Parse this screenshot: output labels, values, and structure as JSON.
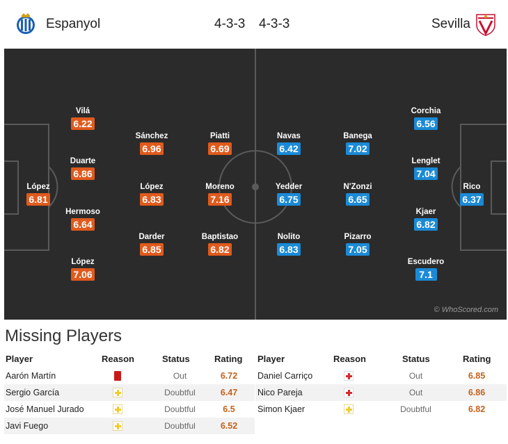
{
  "header": {
    "home_team": "Espanyol",
    "away_team": "Sevilla",
    "home_formation": "4-3-3",
    "away_formation": "4-3-3"
  },
  "pitch": {
    "watermark": "© WhoScored.com",
    "home_players": [
      {
        "name": "López",
        "rating": "6.81"
      },
      {
        "name": "Vilá",
        "rating": "6.22"
      },
      {
        "name": "Duarte",
        "rating": "6.86"
      },
      {
        "name": "Hermoso",
        "rating": "6.64"
      },
      {
        "name": "López",
        "rating": "7.06"
      },
      {
        "name": "Sánchez",
        "rating": "6.96"
      },
      {
        "name": "López",
        "rating": "6.83"
      },
      {
        "name": "Darder",
        "rating": "6.85"
      },
      {
        "name": "Piatti",
        "rating": "6.69"
      },
      {
        "name": "Moreno",
        "rating": "7.16"
      },
      {
        "name": "Baptistao",
        "rating": "6.82"
      }
    ],
    "away_players": [
      {
        "name": "Navas",
        "rating": "6.42"
      },
      {
        "name": "Yedder",
        "rating": "6.75"
      },
      {
        "name": "Nolito",
        "rating": "6.83"
      },
      {
        "name": "Banega",
        "rating": "7.02"
      },
      {
        "name": "N'Zonzi",
        "rating": "6.65"
      },
      {
        "name": "Pizarro",
        "rating": "7.05"
      },
      {
        "name": "Corchia",
        "rating": "6.56"
      },
      {
        "name": "Lenglet",
        "rating": "7.04"
      },
      {
        "name": "Kjaer",
        "rating": "6.82"
      },
      {
        "name": "Escudero",
        "rating": "7.1"
      },
      {
        "name": "Rico",
        "rating": "6.37"
      }
    ]
  },
  "missing": {
    "title": "Missing Players",
    "columns": {
      "player": "Player",
      "reason": "Reason",
      "status": "Status",
      "rating": "Rating"
    },
    "home": [
      {
        "player": "Aarón Martín",
        "reason_icon": "red-card-icon",
        "status": "Out",
        "rating": "6.72"
      },
      {
        "player": "Sergio García",
        "reason_icon": "doubtful-icon",
        "status": "Doubtful",
        "rating": "6.47"
      },
      {
        "player": "José Manuel Jurado",
        "reason_icon": "doubtful-icon",
        "status": "Doubtful",
        "rating": "6.5"
      },
      {
        "player": "Javi Fuego",
        "reason_icon": "doubtful-icon",
        "status": "Doubtful",
        "rating": "6.52"
      }
    ],
    "away": [
      {
        "player": "Daniel Carriço",
        "reason_icon": "injury-icon",
        "status": "Out",
        "rating": "6.85"
      },
      {
        "player": "Nico Pareja",
        "reason_icon": "injury-icon",
        "status": "Out",
        "rating": "6.86"
      },
      {
        "player": "Simon Kjaer",
        "reason_icon": "doubtful-icon",
        "status": "Doubtful",
        "rating": "6.82"
      }
    ]
  },
  "colors": {
    "home_rating": "#e05a1d",
    "away_rating": "#1b8ad6",
    "pitch": "#2b2b2b",
    "missing_rating": "#c4611a"
  }
}
